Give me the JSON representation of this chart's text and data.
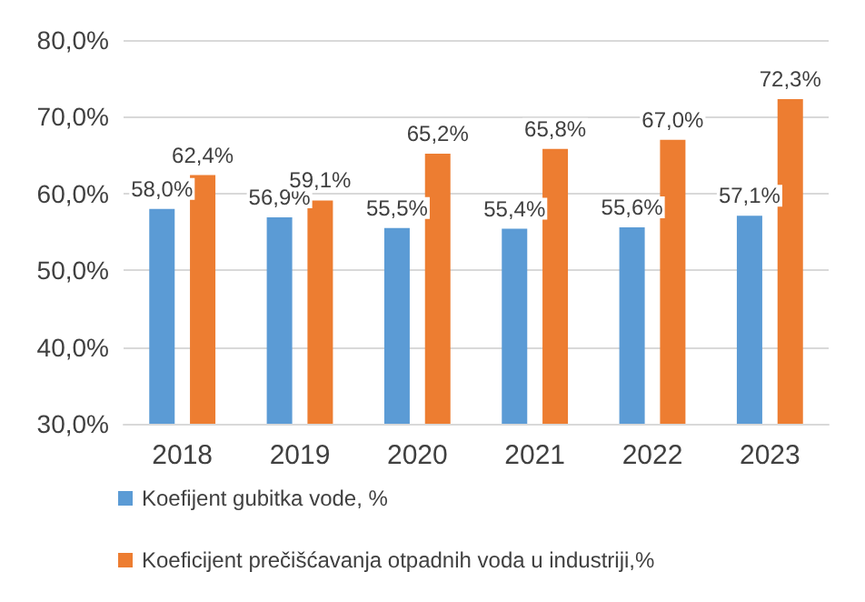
{
  "chart_data": {
    "type": "bar",
    "categories": [
      "2018",
      "2019",
      "2020",
      "2021",
      "2022",
      "2023"
    ],
    "series": [
      {
        "name": "Koefijent gubitka vode, %",
        "color": "#5b9bd5",
        "values": [
          58.0,
          56.9,
          55.5,
          55.4,
          55.6,
          57.1
        ],
        "value_labels": [
          "58,0%",
          "56,9%",
          "55,5%",
          "55,4%",
          "55,6%",
          "57,1%"
        ]
      },
      {
        "name": "Koeficijent prečišćavanja otpadnih voda u industriji,%",
        "color": "#ed7d31",
        "values": [
          62.4,
          59.1,
          65.2,
          65.8,
          67.0,
          72.3
        ],
        "value_labels": [
          "62,4%",
          "59,1%",
          "65,2%",
          "65,8%",
          "67,0%",
          "72,3%"
        ]
      }
    ],
    "ylim": [
      30,
      80
    ],
    "yticks": [
      {
        "value": 30,
        "label": "30,0%"
      },
      {
        "value": 40,
        "label": "40,0%"
      },
      {
        "value": 50,
        "label": "50,0%"
      },
      {
        "value": 60,
        "label": "60,0%"
      },
      {
        "value": 70,
        "label": "70,0%"
      },
      {
        "value": 80,
        "label": "80,0%"
      }
    ],
    "grid": "y",
    "legend": "bottom"
  }
}
